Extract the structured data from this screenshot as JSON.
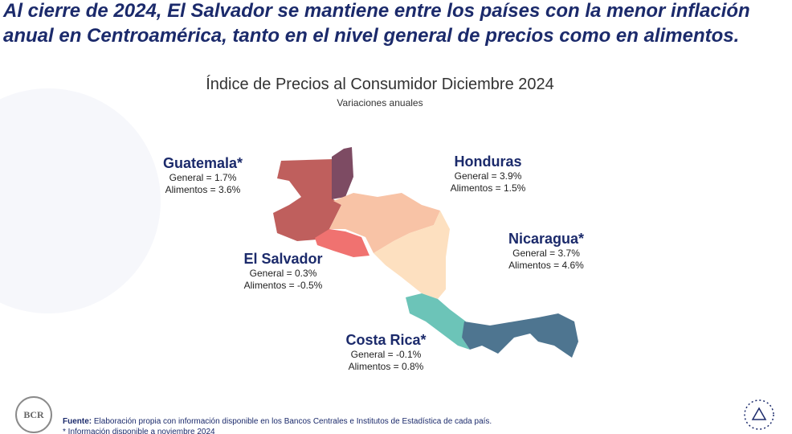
{
  "headline": "Al cierre de 2024, El Salvador se mantiene entre los países con la menor inflación anual en Centroamérica, tanto en el nivel general de precios como en alimentos.",
  "map": {
    "title": "Índice de Precios al Consumidor Diciembre 2024",
    "subtitle": "Variaciones anuales",
    "countries": [
      {
        "name": "Guatemala*",
        "general": "General = 1.7%",
        "food": "Alimentos = 3.6%"
      },
      {
        "name": "Honduras",
        "general": "General = 3.9%",
        "food": "Alimentos = 1.5%"
      },
      {
        "name": "El Salvador",
        "general": "General = 0.3%",
        "food": "Alimentos = -0.5%"
      },
      {
        "name": "Nicaragua*",
        "general": "General = 3.7%",
        "food": "Alimentos = 4.6%"
      },
      {
        "name": "Costa Rica*",
        "general": "General = -0.1%",
        "food": "Alimentos = 0.8%"
      }
    ]
  },
  "footer": {
    "source_label": "Fuente:",
    "source": "Elaboración propia con información disponible en los Bancos Centrales e Institutos de Estadística de cada país.",
    "note": "* Información disponible a noviembre 2024",
    "logo": "BCR"
  }
}
